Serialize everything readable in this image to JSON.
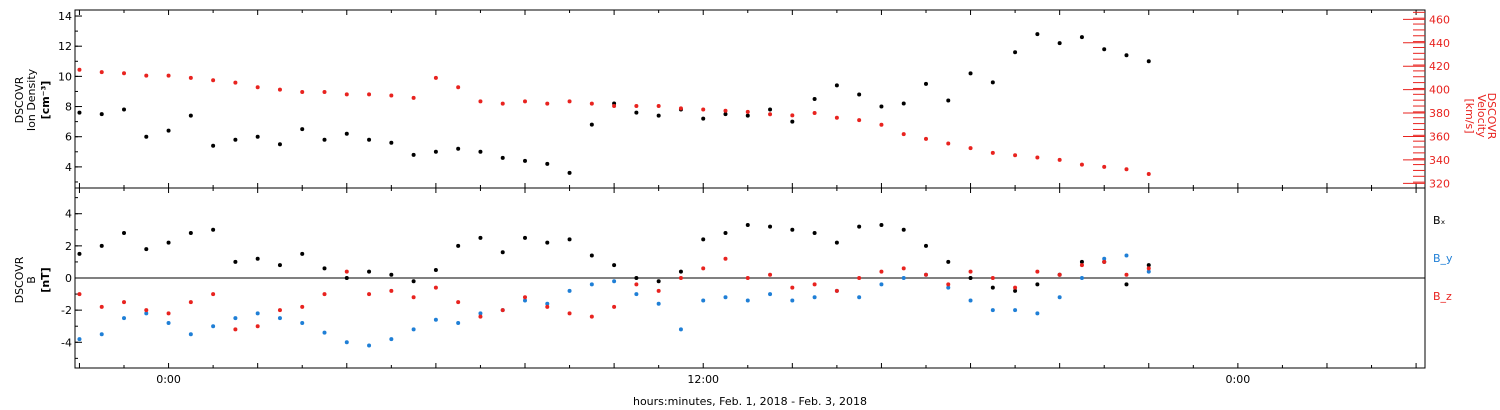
{
  "colors": {
    "black": "#000000",
    "red": "#e8231f",
    "blue": "#1f7fd6"
  },
  "chart_data": [
    {
      "type": "scatter",
      "panel": "top",
      "ylabel": "DSCOVR Ion Density [cm^-3]",
      "y2label": "DSCOVR Velocity [km/s]",
      "ylim": [
        2.6,
        14.4
      ],
      "y_ticks": [
        4,
        6,
        8,
        10,
        12,
        14
      ],
      "y2lim": [
        316,
        468
      ],
      "y2_ticks": [
        320,
        340,
        360,
        380,
        400,
        420,
        440,
        460
      ],
      "xlim_hours": [
        -2.1,
        28.2
      ],
      "x_ticks": [
        "0:00",
        "12:00",
        "0:00"
      ],
      "x_tick_hours": [
        0,
        12,
        24
      ],
      "series": [
        {
          "name": "Ion Density",
          "axis": "left",
          "color_key": "black",
          "x": [
            -2.0,
            -1.5,
            -1.0,
            -0.5,
            0.0,
            0.5,
            1.0,
            1.5,
            2.0,
            2.5,
            3.0,
            3.5,
            4.0,
            4.5,
            5.0,
            5.5,
            6.0,
            6.5,
            7.0,
            7.5,
            8.0,
            8.5,
            9.0,
            9.5,
            10.0,
            10.5,
            11.0,
            11.5,
            12.0,
            12.5,
            13.0,
            13.5,
            14.0,
            14.5,
            15.0,
            15.5,
            16.0,
            16.5,
            17.0,
            17.5,
            18.0,
            18.5,
            19.0,
            19.5,
            20.0,
            20.5,
            21.0,
            21.5,
            22.0
          ],
          "y": [
            7.6,
            7.5,
            7.8,
            6.0,
            6.4,
            7.4,
            5.4,
            5.8,
            6.0,
            5.5,
            6.5,
            5.8,
            6.2,
            5.8,
            5.6,
            4.8,
            5.0,
            5.2,
            5.0,
            4.6,
            4.4,
            4.2,
            3.6,
            6.8,
            8.2,
            7.6,
            7.4,
            7.8,
            7.2,
            7.5,
            7.4,
            7.8,
            7.0,
            8.5,
            9.4,
            8.8,
            8.0,
            8.2,
            9.5,
            8.4,
            10.2,
            9.6,
            11.6,
            12.8,
            12.2,
            12.6,
            11.8,
            11.4,
            11.0
          ]
        },
        {
          "name": "Velocity",
          "axis": "right",
          "color_key": "red",
          "x": [
            -2.0,
            -1.5,
            -1.0,
            -0.5,
            0.0,
            0.5,
            1.0,
            1.5,
            2.0,
            2.5,
            3.0,
            3.5,
            4.0,
            4.5,
            5.0,
            5.5,
            6.0,
            6.5,
            7.0,
            7.5,
            8.0,
            8.5,
            9.0,
            9.5,
            10.0,
            10.5,
            11.0,
            11.5,
            12.0,
            12.5,
            13.0,
            13.5,
            14.0,
            14.5,
            15.0,
            15.5,
            16.0,
            16.5,
            17.0,
            17.5,
            18.0,
            18.5,
            19.0,
            19.5,
            20.0,
            20.5,
            21.0,
            21.5,
            22.0
          ],
          "y": [
            417,
            415,
            414,
            412,
            412,
            410,
            408,
            406,
            402,
            400,
            398,
            398,
            396,
            396,
            395,
            393,
            410,
            402,
            390,
            388,
            390,
            388,
            390,
            388,
            386,
            386,
            386,
            384,
            383,
            382,
            381,
            379,
            378,
            380,
            376,
            374,
            370,
            362,
            358,
            354,
            350,
            346,
            344,
            342,
            340,
            336,
            334,
            332,
            328
          ]
        }
      ]
    },
    {
      "type": "scatter",
      "panel": "bottom",
      "ylabel": "DSCOVR B [nT]",
      "ylim": [
        -5.6,
        5.6
      ],
      "y_ticks": [
        -4,
        -2,
        0,
        2,
        4
      ],
      "zero_line": true,
      "xlim_hours": [
        -2.1,
        28.2
      ],
      "x_ticks": [
        "0:00",
        "12:00",
        "0:00"
      ],
      "x_tick_hours": [
        0,
        12,
        24
      ],
      "xlabel": "hours:minutes, Feb.  1, 2018 - Feb.  3, 2018",
      "series": [
        {
          "name": "Bx",
          "color_key": "black",
          "x": [
            -2.0,
            -1.5,
            -1.0,
            -0.5,
            0.0,
            0.5,
            1.0,
            1.5,
            2.0,
            2.5,
            3.0,
            3.5,
            4.0,
            4.5,
            5.0,
            5.5,
            6.0,
            6.5,
            7.0,
            7.5,
            8.0,
            8.5,
            9.0,
            9.5,
            10.0,
            10.5,
            11.0,
            11.5,
            12.0,
            12.5,
            13.0,
            13.5,
            14.0,
            14.5,
            15.0,
            15.5,
            16.0,
            16.5,
            17.0,
            17.5,
            18.0,
            18.5,
            19.0,
            19.5,
            20.0,
            20.5,
            21.0,
            21.5,
            22.0
          ],
          "y": [
            1.5,
            2.0,
            2.8,
            1.8,
            2.2,
            2.8,
            3.0,
            1.0,
            1.2,
            0.8,
            1.5,
            0.6,
            0.0,
            0.4,
            0.2,
            -0.2,
            0.5,
            2.0,
            2.5,
            1.6,
            2.5,
            2.2,
            2.4,
            1.4,
            0.8,
            0.0,
            -0.2,
            0.4,
            2.4,
            2.8,
            3.3,
            3.2,
            3.0,
            2.8,
            2.2,
            3.2,
            3.3,
            3.0,
            2.0,
            1.0,
            0.0,
            -0.6,
            -0.8,
            -0.4,
            0.2,
            1.0,
            1.0,
            -0.4,
            0.8
          ]
        },
        {
          "name": "By",
          "color_key": "blue",
          "x": [
            -2.0,
            -1.5,
            -1.0,
            -0.5,
            0.0,
            0.5,
            1.0,
            1.5,
            2.0,
            2.5,
            3.0,
            3.5,
            4.0,
            4.5,
            5.0,
            5.5,
            6.0,
            6.5,
            7.0,
            7.5,
            8.0,
            8.5,
            9.0,
            9.5,
            10.0,
            10.5,
            11.0,
            11.5,
            12.0,
            12.5,
            13.0,
            13.5,
            14.0,
            14.5,
            15.0,
            15.5,
            16.0,
            16.5,
            17.0,
            17.5,
            18.0,
            18.5,
            19.0,
            19.5,
            20.0,
            20.5,
            21.0,
            21.5,
            22.0
          ],
          "y": [
            -3.8,
            -3.5,
            -2.5,
            -2.2,
            -2.8,
            -3.5,
            -3.0,
            -2.5,
            -2.2,
            -2.5,
            -2.8,
            -3.4,
            -4.0,
            -4.2,
            -3.8,
            -3.2,
            -2.6,
            -2.8,
            -2.2,
            -2.0,
            -1.4,
            -1.6,
            -0.8,
            -0.4,
            -0.2,
            -1.0,
            -1.6,
            -3.2,
            -1.4,
            -1.2,
            -1.4,
            -1.0,
            -1.4,
            -1.2,
            -0.8,
            -1.2,
            -0.4,
            0.0,
            0.2,
            -0.6,
            -1.4,
            -2.0,
            -2.0,
            -2.2,
            -1.2,
            0.0,
            1.2,
            1.4,
            0.4
          ]
        },
        {
          "name": "Bz",
          "color_key": "red",
          "x": [
            -2.0,
            -1.5,
            -1.0,
            -0.5,
            0.0,
            0.5,
            1.0,
            1.5,
            2.0,
            2.5,
            3.0,
            3.5,
            4.0,
            4.5,
            5.0,
            5.5,
            6.0,
            6.5,
            7.0,
            7.5,
            8.0,
            8.5,
            9.0,
            9.5,
            10.0,
            10.5,
            11.0,
            11.5,
            12.0,
            12.5,
            13.0,
            13.5,
            14.0,
            14.5,
            15.0,
            15.5,
            16.0,
            16.5,
            17.0,
            17.5,
            18.0,
            18.5,
            19.0,
            19.5,
            20.0,
            20.5,
            21.0,
            21.5,
            22.0
          ],
          "y": [
            -1.0,
            -1.8,
            -1.5,
            -2.0,
            -2.2,
            -1.5,
            -1.0,
            -3.2,
            -3.0,
            -2.0,
            -1.8,
            -1.0,
            0.4,
            -1.0,
            -0.8,
            -1.2,
            -0.6,
            -1.5,
            -2.4,
            -2.0,
            -1.2,
            -1.8,
            -2.2,
            -2.4,
            -1.8,
            -0.4,
            -0.8,
            0.0,
            0.6,
            1.2,
            0.0,
            0.2,
            -0.6,
            -0.4,
            -0.8,
            0.0,
            0.4,
            0.6,
            0.2,
            -0.4,
            0.4,
            0.0,
            -0.6,
            0.4,
            0.2,
            0.8,
            1.0,
            0.2,
            0.6
          ]
        }
      ]
    }
  ],
  "labels": {
    "top_left": [
      "DSCOVR",
      "Ion Density",
      "[cm⁻³]"
    ],
    "top_right": [
      "DSCOVR",
      "Velocity",
      "[km/s]"
    ],
    "bottom_left": [
      "DSCOVR",
      "B",
      "[nT]"
    ],
    "legend": {
      "bx": "Bₓ",
      "by": "B_y",
      "bz": "B_z"
    }
  }
}
